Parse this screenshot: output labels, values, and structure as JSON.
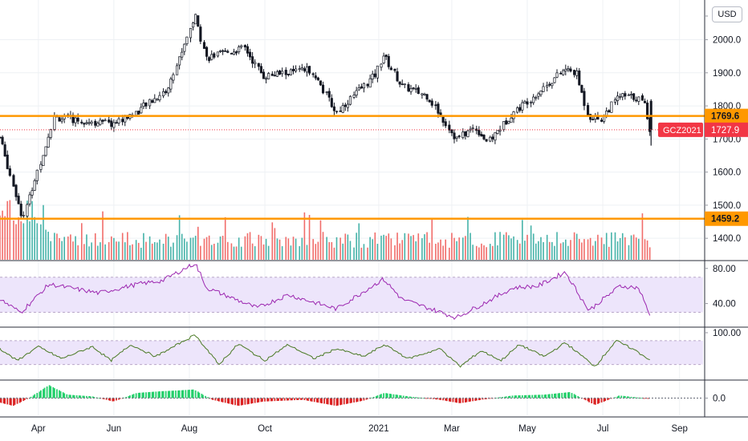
{
  "currency": "USD",
  "colors": {
    "up": "#26a69a",
    "down": "#ef5350",
    "candle": "#131722",
    "level": "#ff9800",
    "price_label": "#f23645",
    "rsi": "#9c27b0",
    "osc2": "#4a7a24",
    "band_fill": "#ede5fb",
    "band_line": "#b9a7c9",
    "grid": "#eef1f4",
    "axis_text": "#131722",
    "volume_up": "#26a69a",
    "volume_down": "#ef5350"
  },
  "chart_data": [
    {
      "type": "candlestick",
      "title": "",
      "symbol_label": "GCZ2021",
      "last_price": "1727.9",
      "y_ticks": [
        "1400.0",
        "1500.0",
        "1600.0",
        "1700.0",
        "1800.0",
        "1900.0",
        "2000.0"
      ],
      "ylim": [
        1335,
        2120
      ],
      "levels": [
        {
          "label": "1769.6",
          "value": 1769.6
        },
        {
          "label": "1459.2",
          "value": 1459.2
        }
      ],
      "x_ticks": [
        "Apr",
        "Jun",
        "Aug",
        "Oct",
        "2021",
        "Mar",
        "May",
        "Jul",
        "Sep"
      ],
      "x_range": [
        "2020-03-01",
        "2021-09-20"
      ],
      "key_points": [
        {
          "date": "2020-03-01",
          "price": 1705
        },
        {
          "date": "2020-03-20",
          "price": 1460
        },
        {
          "date": "2020-04-14",
          "price": 1765
        },
        {
          "date": "2020-05-31",
          "price": 1745
        },
        {
          "date": "2020-06-19",
          "price": 1780
        },
        {
          "date": "2020-07-15",
          "price": 1850
        },
        {
          "date": "2020-08-06",
          "price": 2075
        },
        {
          "date": "2020-08-15",
          "price": 1945
        },
        {
          "date": "2020-09-15",
          "price": 1975
        },
        {
          "date": "2020-09-30",
          "price": 1890
        },
        {
          "date": "2020-11-08",
          "price": 1910
        },
        {
          "date": "2020-11-28",
          "price": 1780
        },
        {
          "date": "2020-12-30",
          "price": 1895
        },
        {
          "date": "2021-01-05",
          "price": 1955
        },
        {
          "date": "2021-01-20",
          "price": 1860
        },
        {
          "date": "2021-02-10",
          "price": 1830
        },
        {
          "date": "2021-03-05",
          "price": 1700
        },
        {
          "date": "2021-03-20",
          "price": 1735
        },
        {
          "date": "2021-03-31",
          "price": 1690
        },
        {
          "date": "2021-04-20",
          "price": 1780
        },
        {
          "date": "2021-05-10",
          "price": 1840
        },
        {
          "date": "2021-06-01",
          "price": 1910
        },
        {
          "date": "2021-06-10",
          "price": 1900
        },
        {
          "date": "2021-06-20",
          "price": 1770
        },
        {
          "date": "2021-06-30",
          "price": 1760
        },
        {
          "date": "2021-07-15",
          "price": 1830
        },
        {
          "date": "2021-07-30",
          "price": 1825
        },
        {
          "date": "2021-08-05",
          "price": 1800
        },
        {
          "date": "2021-08-09",
          "price": 1727.9
        }
      ]
    },
    {
      "type": "line",
      "title": "",
      "y_ticks": [
        "80.00",
        "40.00"
      ],
      "ylim": [
        15,
        88
      ],
      "band": [
        30,
        70
      ],
      "key_points": [
        {
          "date": "2020-03-01",
          "value": 45
        },
        {
          "date": "2020-03-18",
          "value": 30
        },
        {
          "date": "2020-04-10",
          "value": 62
        },
        {
          "date": "2020-05-20",
          "value": 52
        },
        {
          "date": "2020-06-20",
          "value": 62
        },
        {
          "date": "2020-07-10",
          "value": 66
        },
        {
          "date": "2020-08-06",
          "value": 86
        },
        {
          "date": "2020-08-15",
          "value": 58
        },
        {
          "date": "2020-09-25",
          "value": 35
        },
        {
          "date": "2020-10-20",
          "value": 50
        },
        {
          "date": "2020-11-28",
          "value": 34
        },
        {
          "date": "2021-01-05",
          "value": 68
        },
        {
          "date": "2021-01-20",
          "value": 45
        },
        {
          "date": "2021-03-05",
          "value": 24
        },
        {
          "date": "2021-04-20",
          "value": 58
        },
        {
          "date": "2021-05-10",
          "value": 60
        },
        {
          "date": "2021-06-01",
          "value": 76
        },
        {
          "date": "2021-06-20",
          "value": 32
        },
        {
          "date": "2021-07-15",
          "value": 60
        },
        {
          "date": "2021-07-30",
          "value": 58
        },
        {
          "date": "2021-08-09",
          "value": 25
        }
      ]
    },
    {
      "type": "line",
      "title": "",
      "y_ticks": [
        "100.00"
      ],
      "ylim": [
        -15,
        112
      ],
      "band": [
        20,
        80
      ],
      "key_points": [
        {
          "date": "2020-03-01",
          "value": 60
        },
        {
          "date": "2020-03-15",
          "value": 30
        },
        {
          "date": "2020-04-01",
          "value": 65
        },
        {
          "date": "2020-04-20",
          "value": 35
        },
        {
          "date": "2020-05-15",
          "value": 65
        },
        {
          "date": "2020-05-30",
          "value": 30
        },
        {
          "date": "2020-06-15",
          "value": 70
        },
        {
          "date": "2020-07-05",
          "value": 40
        },
        {
          "date": "2020-08-06",
          "value": 95
        },
        {
          "date": "2020-08-25",
          "value": 20
        },
        {
          "date": "2020-09-10",
          "value": 72
        },
        {
          "date": "2020-10-01",
          "value": 30
        },
        {
          "date": "2020-10-20",
          "value": 70
        },
        {
          "date": "2020-11-10",
          "value": 35
        },
        {
          "date": "2020-11-28",
          "value": 60
        },
        {
          "date": "2020-12-20",
          "value": 40
        },
        {
          "date": "2021-01-06",
          "value": 70
        },
        {
          "date": "2021-01-25",
          "value": 35
        },
        {
          "date": "2021-02-20",
          "value": 60
        },
        {
          "date": "2021-03-08",
          "value": 15
        },
        {
          "date": "2021-03-25",
          "value": 55
        },
        {
          "date": "2021-04-10",
          "value": 30
        },
        {
          "date": "2021-04-25",
          "value": 70
        },
        {
          "date": "2021-05-15",
          "value": 40
        },
        {
          "date": "2021-06-01",
          "value": 75
        },
        {
          "date": "2021-06-25",
          "value": 15
        },
        {
          "date": "2021-07-12",
          "value": 80
        },
        {
          "date": "2021-07-28",
          "value": 55
        },
        {
          "date": "2021-08-09",
          "value": 30
        }
      ]
    },
    {
      "type": "bar",
      "title": "",
      "y_ticks": [
        "0.0"
      ],
      "ylim": [
        -1,
        1
      ],
      "key_points": [
        {
          "date": "2020-03-01",
          "value": -0.25
        },
        {
          "date": "2020-03-12",
          "value": -0.45
        },
        {
          "date": "2020-03-25",
          "value": 0
        },
        {
          "date": "2020-04-10",
          "value": 0.75
        },
        {
          "date": "2020-04-25",
          "value": 0.2
        },
        {
          "date": "2020-05-15",
          "value": 0.1
        },
        {
          "date": "2020-06-01",
          "value": -0.2
        },
        {
          "date": "2020-06-20",
          "value": 0.3
        },
        {
          "date": "2020-07-10",
          "value": 0.4
        },
        {
          "date": "2020-07-25",
          "value": 0.45
        },
        {
          "date": "2020-08-05",
          "value": 0.5
        },
        {
          "date": "2020-08-20",
          "value": -0.1
        },
        {
          "date": "2020-09-10",
          "value": -0.45
        },
        {
          "date": "2020-09-30",
          "value": -0.2
        },
        {
          "date": "2020-11-01",
          "value": -0.1
        },
        {
          "date": "2020-11-28",
          "value": -0.45
        },
        {
          "date": "2020-12-20",
          "value": -0.15
        },
        {
          "date": "2021-01-06",
          "value": 0.3
        },
        {
          "date": "2021-01-25",
          "value": 0.1
        },
        {
          "date": "2021-02-20",
          "value": -0.1
        },
        {
          "date": "2021-03-08",
          "value": -0.3
        },
        {
          "date": "2021-03-25",
          "value": -0.1
        },
        {
          "date": "2021-04-20",
          "value": 0.15
        },
        {
          "date": "2021-05-15",
          "value": 0.2
        },
        {
          "date": "2021-06-05",
          "value": 0.35
        },
        {
          "date": "2021-06-25",
          "value": -0.4
        },
        {
          "date": "2021-07-15",
          "value": 0.15
        },
        {
          "date": "2021-08-09",
          "value": -0.05
        }
      ]
    }
  ]
}
